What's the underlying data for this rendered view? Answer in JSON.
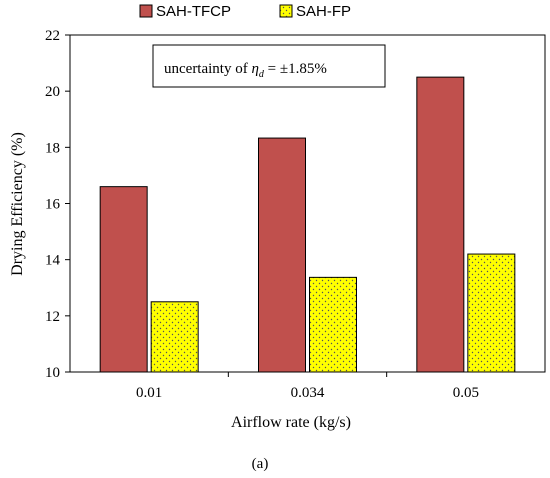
{
  "chart_data": {
    "type": "bar",
    "categories": [
      "0.01",
      "0.034",
      "0.05"
    ],
    "series": [
      {
        "name": "SAH-TFCP",
        "values": [
          16.6,
          18.33,
          20.5
        ],
        "color": "#c0504d",
        "pattern": "solid"
      },
      {
        "name": "SAH-FP",
        "values": [
          12.5,
          13.37,
          14.2
        ],
        "color": "#ffff00",
        "pattern": "dotted"
      }
    ],
    "xlabel": "Airflow rate (kg/s)",
    "ylabel": "Drying Efficiency (%)",
    "ylim": [
      10,
      22
    ],
    "yticks": [
      "10",
      "12",
      "14",
      "16",
      "18",
      "20",
      "22"
    ],
    "grid": false,
    "legend_position": "top-center",
    "annotation": {
      "prefix": "uncertainty of ",
      "symbol": "η",
      "subscript": "d",
      "suffix": " = ±1.85%"
    },
    "caption": "(a)"
  }
}
